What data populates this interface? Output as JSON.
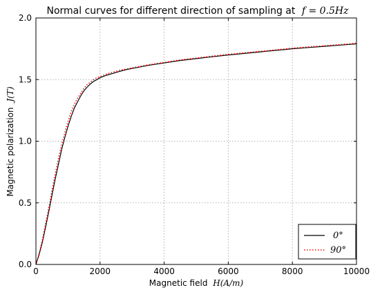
{
  "chart_data": {
    "type": "line",
    "title": "Normal curves for different direction of sampling at",
    "title_math": "f = 0.5Hz",
    "xlabel": "Magnetic field",
    "xlabel_math": "H(A/m)",
    "ylabel": "Magnetic polarization",
    "ylabel_math": "J(T)",
    "xlim": [
      0,
      10000
    ],
    "ylim": [
      0.0,
      2.0
    ],
    "xticks": [
      0,
      2000,
      4000,
      6000,
      8000,
      10000
    ],
    "xtick_labels": [
      "0",
      "2000",
      "4000",
      "6000",
      "8000",
      "10000"
    ],
    "yticks": [
      0.0,
      0.5,
      1.0,
      1.5,
      2.0
    ],
    "ytick_labels": [
      "0.0",
      "0.5",
      "1.0",
      "1.5",
      "2.0"
    ],
    "grid": true,
    "legend_position": "bottom-right",
    "series": [
      {
        "name": "0°",
        "color": "#000000",
        "style": "solid",
        "x": [
          0,
          100,
          200,
          300,
          400,
          500,
          600,
          700,
          800,
          900,
          1000,
          1100,
          1200,
          1300,
          1400,
          1500,
          1600,
          1700,
          1800,
          1900,
          2000,
          2200,
          2400,
          2600,
          2800,
          3000,
          3500,
          4000,
          4500,
          5000,
          5500,
          6000,
          6500,
          7000,
          7500,
          8000,
          8500,
          9000,
          9500,
          10000
        ],
        "y": [
          0.0,
          0.08,
          0.18,
          0.3,
          0.43,
          0.56,
          0.69,
          0.81,
          0.93,
          1.03,
          1.12,
          1.2,
          1.27,
          1.32,
          1.37,
          1.41,
          1.44,
          1.465,
          1.485,
          1.5,
          1.515,
          1.535,
          1.55,
          1.565,
          1.58,
          1.59,
          1.615,
          1.635,
          1.655,
          1.67,
          1.685,
          1.7,
          1.712,
          1.725,
          1.737,
          1.75,
          1.76,
          1.77,
          1.78,
          1.79
        ]
      },
      {
        "name": "90°",
        "color": "#ff0000",
        "style": "dotted",
        "x": [
          0,
          100,
          200,
          300,
          400,
          500,
          600,
          700,
          800,
          900,
          1000,
          1100,
          1200,
          1300,
          1400,
          1500,
          1600,
          1700,
          1800,
          1900,
          2000,
          2200,
          2400,
          2600,
          2800,
          3000,
          3500,
          4000,
          4500,
          5000,
          5500,
          6000,
          6500,
          7000,
          7500,
          8000,
          8500,
          9000,
          9500,
          10000
        ],
        "y": [
          0.0,
          0.09,
          0.2,
          0.33,
          0.46,
          0.6,
          0.73,
          0.86,
          0.97,
          1.07,
          1.16,
          1.24,
          1.3,
          1.35,
          1.39,
          1.43,
          1.46,
          1.48,
          1.5,
          1.515,
          1.525,
          1.545,
          1.56,
          1.575,
          1.585,
          1.595,
          1.62,
          1.64,
          1.66,
          1.675,
          1.69,
          1.705,
          1.717,
          1.73,
          1.742,
          1.755,
          1.765,
          1.775,
          1.785,
          1.795
        ]
      }
    ]
  }
}
